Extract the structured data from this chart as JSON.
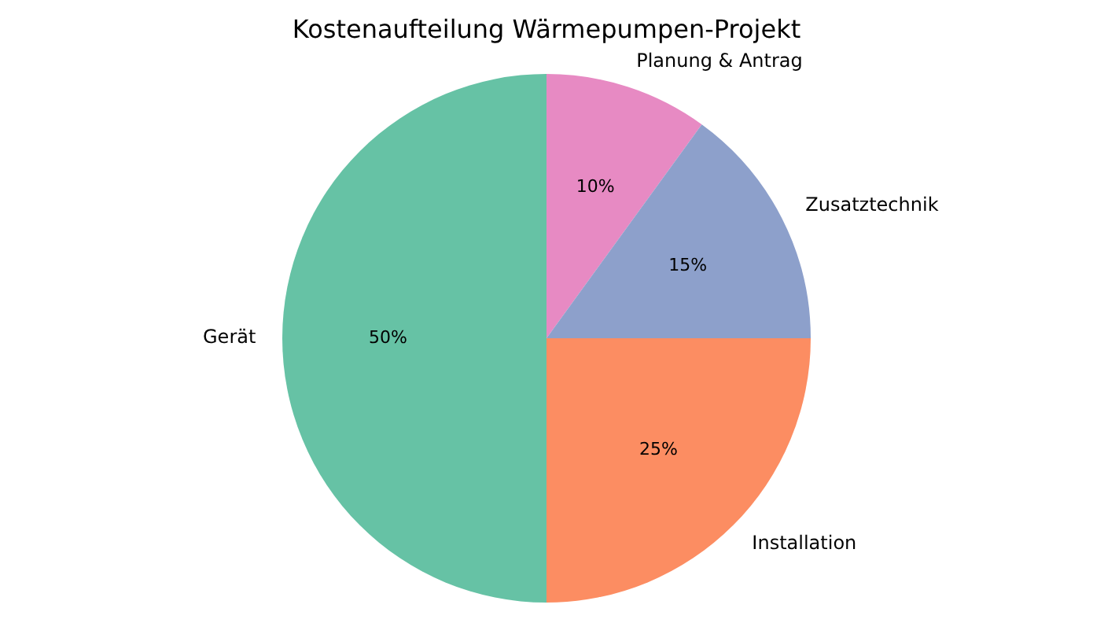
{
  "chart_data": {
    "type": "pie",
    "title": "Kostenaufteilung Wärmepumpen-Projekt",
    "categories": [
      "Gerät",
      "Installation",
      "Zusatztechnik",
      "Planung & Antrag"
    ],
    "values": [
      50,
      25,
      15,
      10
    ],
    "colors": [
      "#66c2a5",
      "#fc8d62",
      "#8da0cb",
      "#e78ac3"
    ],
    "value_labels": [
      "50%",
      "25%",
      "15%",
      "10%"
    ],
    "legend": false
  }
}
